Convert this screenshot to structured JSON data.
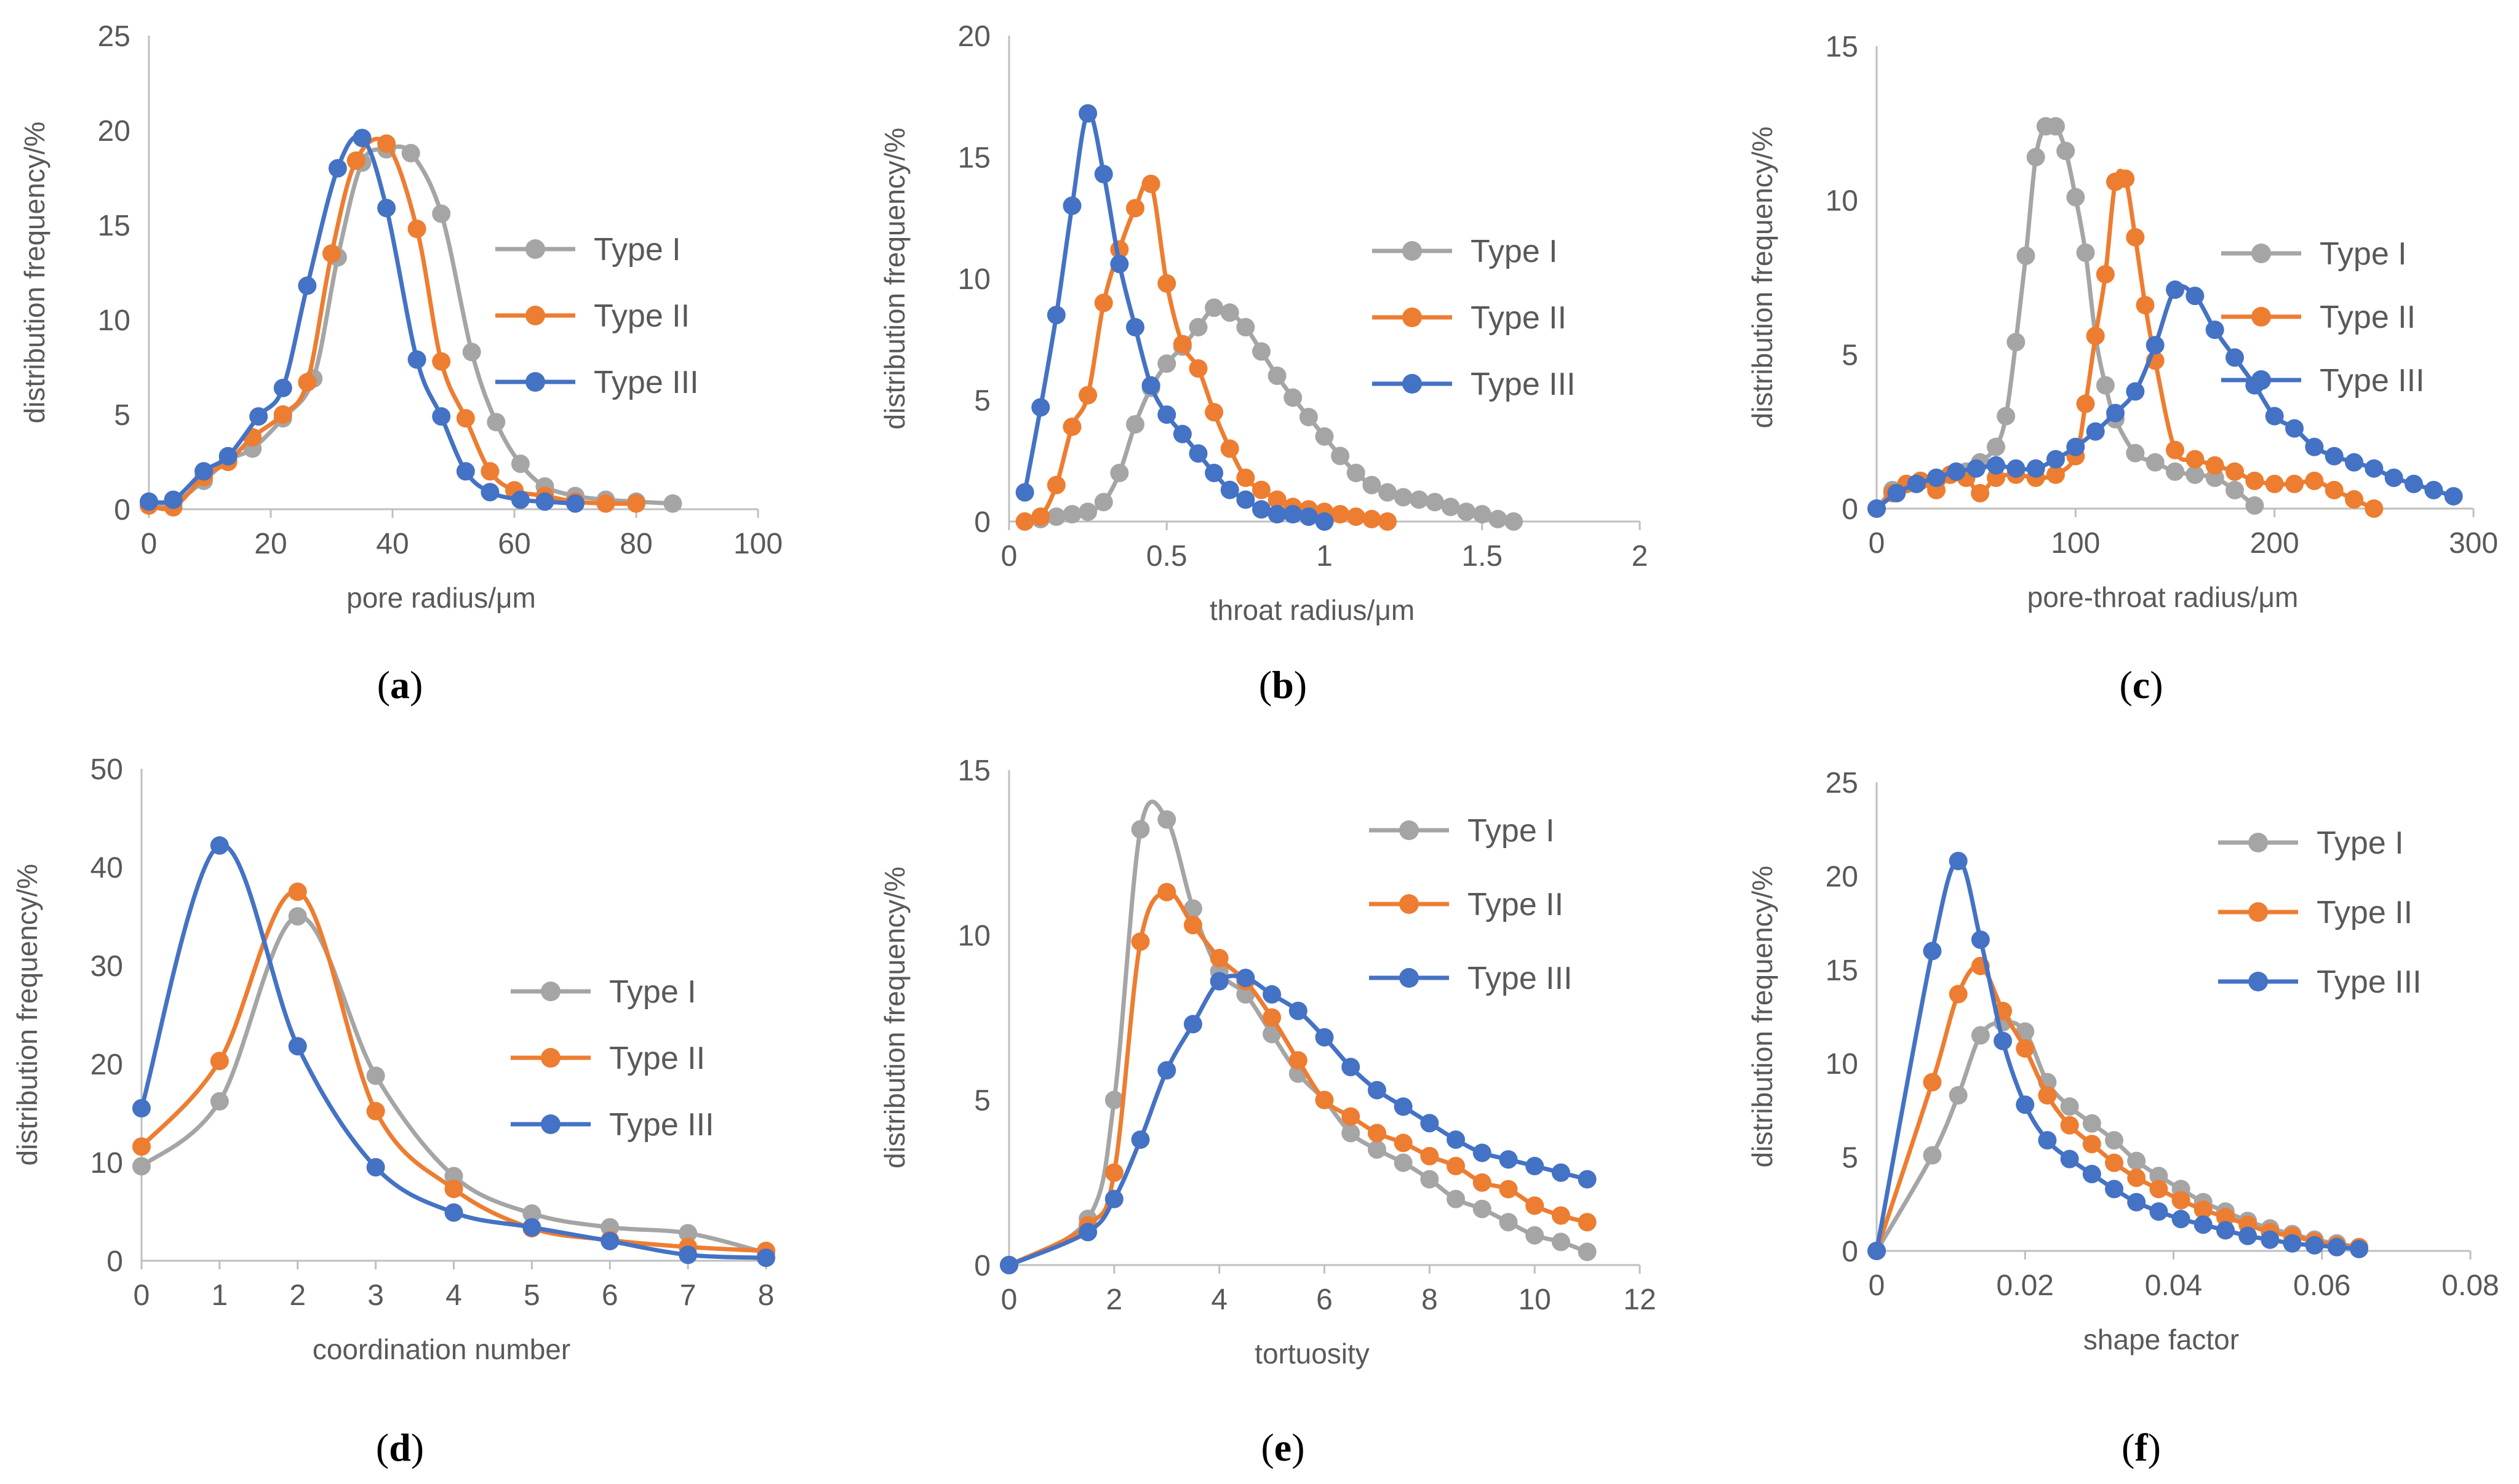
{
  "colors": {
    "Type I": "#a5a5a5",
    "Type II": "#ed7d31",
    "Type III": "#4472c4",
    "axis": "#bfbfbf",
    "text": "#595959"
  },
  "chart_data": [
    {
      "type": "line",
      "panel_label": "a",
      "xlabel": "pore radius/μm",
      "ylabel": "distribution frequency/%",
      "xlim": [
        0,
        100
      ],
      "ylim": [
        0,
        25
      ],
      "xticks": [
        "0",
        "20",
        "40",
        "60",
        "80",
        "100"
      ],
      "yticks": [
        "0",
        "5",
        "10",
        "15",
        "20",
        "25"
      ],
      "series": [
        {
          "name": "Type I",
          "x": [
            0,
            4,
            9,
            13,
            17,
            22,
            27,
            31,
            35,
            39,
            43,
            48,
            53,
            57,
            61,
            65,
            70,
            75,
            80,
            86
          ],
          "y": [
            0.2,
            0.3,
            1.5,
            2.6,
            3.2,
            4.8,
            6.9,
            13.3,
            18.3,
            19.0,
            18.8,
            15.6,
            8.3,
            4.6,
            2.4,
            1.2,
            0.7,
            0.5,
            0.4,
            0.3
          ]
        },
        {
          "name": "Type II",
          "x": [
            0,
            4,
            9,
            13,
            17,
            22,
            26,
            30,
            34,
            39,
            44,
            48,
            52,
            56,
            60,
            65,
            70,
            75,
            80
          ],
          "y": [
            0.2,
            0.1,
            1.7,
            2.5,
            3.8,
            5.0,
            6.7,
            13.5,
            18.4,
            19.3,
            14.8,
            7.8,
            4.8,
            2.0,
            1.0,
            0.7,
            0.4,
            0.3,
            0.3
          ]
        },
        {
          "name": "Type III",
          "x": [
            0,
            4,
            9,
            13,
            18,
            22,
            26,
            31,
            35,
            39,
            44,
            48,
            52,
            56,
            61,
            65,
            70
          ],
          "y": [
            0.4,
            0.5,
            2.0,
            2.8,
            4.9,
            6.4,
            11.8,
            18.0,
            19.6,
            15.9,
            7.9,
            4.9,
            2.0,
            0.9,
            0.5,
            0.4,
            0.3
          ]
        }
      ]
    },
    {
      "type": "line",
      "panel_label": "b",
      "xlabel": "throat radius/μm",
      "ylabel": "distribution frequency/%",
      "xlim": [
        0,
        2
      ],
      "ylim": [
        0,
        20
      ],
      "xticks": [
        "0",
        "0.5",
        "1",
        "1.5",
        "2"
      ],
      "yticks": [
        "0",
        "5",
        "10",
        "15",
        "20"
      ],
      "series": [
        {
          "name": "Type I",
          "x": [
            0.1,
            0.15,
            0.2,
            0.25,
            0.3,
            0.35,
            0.4,
            0.45,
            0.5,
            0.55,
            0.6,
            0.65,
            0.7,
            0.75,
            0.8,
            0.85,
            0.9,
            0.95,
            1.0,
            1.05,
            1.1,
            1.15,
            1.2,
            1.25,
            1.3,
            1.35,
            1.4,
            1.45,
            1.5,
            1.55,
            1.6
          ],
          "y": [
            0.1,
            0.2,
            0.3,
            0.4,
            0.8,
            2.0,
            4.0,
            5.5,
            6.5,
            7.2,
            8.0,
            8.8,
            8.6,
            8.0,
            7.0,
            6.0,
            5.1,
            4.3,
            3.5,
            2.7,
            2.0,
            1.5,
            1.2,
            1.0,
            0.9,
            0.8,
            0.6,
            0.4,
            0.3,
            0.1,
            0.0
          ]
        },
        {
          "name": "Type II",
          "x": [
            0.05,
            0.1,
            0.15,
            0.2,
            0.25,
            0.3,
            0.35,
            0.4,
            0.45,
            0.5,
            0.55,
            0.6,
            0.65,
            0.7,
            0.75,
            0.8,
            0.85,
            0.9,
            0.95,
            1.0,
            1.05,
            1.1,
            1.15,
            1.2
          ],
          "y": [
            0.0,
            0.2,
            1.5,
            3.9,
            5.2,
            9.0,
            11.2,
            12.9,
            13.9,
            9.8,
            7.3,
            6.3,
            4.5,
            3.0,
            1.8,
            1.3,
            0.9,
            0.6,
            0.5,
            0.4,
            0.3,
            0.2,
            0.1,
            0.0
          ]
        },
        {
          "name": "Type III",
          "x": [
            0.05,
            0.1,
            0.15,
            0.2,
            0.25,
            0.3,
            0.35,
            0.4,
            0.45,
            0.5,
            0.55,
            0.6,
            0.65,
            0.7,
            0.75,
            0.8,
            0.85,
            0.9,
            0.95,
            1.0
          ],
          "y": [
            1.2,
            4.7,
            8.5,
            13.0,
            16.8,
            14.3,
            10.6,
            8.0,
            5.6,
            4.4,
            3.6,
            2.8,
            2.0,
            1.3,
            0.9,
            0.5,
            0.3,
            0.3,
            0.2,
            0.0
          ]
        }
      ]
    },
    {
      "type": "line",
      "panel_label": "c",
      "xlabel": "pore-throat radius/μm",
      "ylabel": "distribution frequency/%",
      "xlim": [
        0,
        300
      ],
      "ylim": [
        0,
        15
      ],
      "xticks": [
        "0",
        "100",
        "200",
        "300"
      ],
      "yticks": [
        "0",
        "5",
        "10",
        "15"
      ],
      "series": [
        {
          "name": "Type I",
          "x": [
            0,
            8,
            15,
            22,
            30,
            37,
            45,
            52,
            60,
            65,
            70,
            75,
            80,
            85,
            90,
            95,
            100,
            105,
            110,
            115,
            120,
            130,
            140,
            150,
            160,
            170,
            180,
            190
          ],
          "y": [
            0.0,
            0.6,
            0.8,
            0.9,
            1.0,
            1.1,
            1.2,
            1.5,
            2.0,
            3.0,
            5.4,
            8.2,
            11.4,
            12.4,
            12.4,
            11.6,
            10.1,
            8.3,
            5.6,
            4.0,
            2.9,
            1.8,
            1.5,
            1.2,
            1.1,
            1.0,
            0.6,
            0.1
          ]
        },
        {
          "name": "Type II",
          "x": [
            0,
            8,
            15,
            22,
            30,
            37,
            45,
            52,
            60,
            70,
            80,
            90,
            100,
            105,
            110,
            115,
            120,
            125,
            130,
            135,
            140,
            150,
            160,
            170,
            180,
            190,
            200,
            210,
            220,
            230,
            240,
            250
          ],
          "y": [
            0.0,
            0.5,
            0.8,
            0.9,
            0.6,
            1.1,
            1.0,
            0.5,
            1.0,
            1.1,
            1.0,
            1.1,
            1.7,
            3.4,
            5.6,
            7.6,
            10.6,
            10.7,
            8.8,
            6.6,
            4.8,
            1.9,
            1.6,
            1.4,
            1.2,
            0.9,
            0.8,
            0.8,
            0.9,
            0.6,
            0.3,
            0.0
          ]
        },
        {
          "name": "Type III",
          "x": [
            0,
            10,
            20,
            30,
            40,
            50,
            60,
            70,
            80,
            90,
            100,
            110,
            120,
            130,
            140,
            150,
            160,
            170,
            180,
            190,
            200,
            210,
            220,
            230,
            240,
            250,
            260,
            270,
            280,
            290
          ],
          "y": [
            0.0,
            0.5,
            0.8,
            1.0,
            1.2,
            1.3,
            1.4,
            1.3,
            1.3,
            1.6,
            2.0,
            2.5,
            3.1,
            3.8,
            5.3,
            7.1,
            6.9,
            5.8,
            4.9,
            4.0,
            3.0,
            2.6,
            2.0,
            1.7,
            1.5,
            1.3,
            1.0,
            0.8,
            0.6,
            0.4
          ]
        }
      ]
    },
    {
      "type": "line",
      "panel_label": "d",
      "xlabel": "coordination number",
      "ylabel": "distribution frequency/%",
      "xlim": [
        0,
        8
      ],
      "ylim": [
        0,
        50
      ],
      "xticks": [
        "0",
        "1",
        "2",
        "3",
        "4",
        "5",
        "6",
        "7",
        "8"
      ],
      "yticks": [
        "0",
        "10",
        "20",
        "30",
        "40",
        "50"
      ],
      "series": [
        {
          "name": "Type I",
          "x": [
            0,
            1,
            2,
            3,
            4,
            5,
            6,
            7,
            8
          ],
          "y": [
            9.6,
            16.2,
            35.0,
            18.8,
            8.6,
            4.8,
            3.4,
            2.8,
            0.8
          ]
        },
        {
          "name": "Type II",
          "x": [
            0,
            1,
            2,
            3,
            4,
            5,
            6,
            7,
            8
          ],
          "y": [
            11.6,
            20.3,
            37.5,
            15.2,
            7.3,
            3.3,
            2.1,
            1.4,
            1.0
          ]
        },
        {
          "name": "Type III",
          "x": [
            0,
            1,
            2,
            3,
            4,
            5,
            6,
            7,
            8
          ],
          "y": [
            15.5,
            42.2,
            21.8,
            9.5,
            4.9,
            3.4,
            2.0,
            0.6,
            0.3
          ]
        }
      ]
    },
    {
      "type": "line",
      "panel_label": "e",
      "xlabel": "tortuosity",
      "ylabel": "distribution frequency/%",
      "xlim": [
        0,
        12
      ],
      "ylim": [
        0,
        15
      ],
      "xticks": [
        "0",
        "2",
        "4",
        "6",
        "8",
        "10",
        "12"
      ],
      "yticks": [
        "0",
        "5",
        "10",
        "15"
      ],
      "series": [
        {
          "name": "Type I",
          "x": [
            0,
            1.5,
            2,
            2.5,
            3,
            3.5,
            4,
            4.5,
            5,
            5.5,
            6,
            6.5,
            7,
            7.5,
            8,
            8.5,
            9,
            9.5,
            10,
            10.5,
            11
          ],
          "y": [
            0.0,
            1.4,
            5.0,
            13.2,
            13.5,
            10.8,
            8.9,
            8.2,
            7.0,
            5.8,
            5.0,
            4.0,
            3.5,
            3.1,
            2.6,
            2.0,
            1.7,
            1.3,
            0.9,
            0.7,
            0.4
          ]
        },
        {
          "name": "Type II",
          "x": [
            0,
            1.5,
            2,
            2.5,
            3,
            3.5,
            4,
            4.5,
            5,
            5.5,
            6,
            6.5,
            7,
            7.5,
            8,
            8.5,
            9,
            9.5,
            10,
            10.5,
            11
          ],
          "y": [
            0.0,
            1.2,
            2.8,
            9.8,
            11.3,
            10.3,
            9.3,
            8.6,
            7.5,
            6.2,
            5.0,
            4.5,
            4.0,
            3.7,
            3.3,
            3.0,
            2.5,
            2.3,
            1.8,
            1.5,
            1.3
          ]
        },
        {
          "name": "Type III",
          "x": [
            0,
            1.5,
            2,
            2.5,
            3,
            3.5,
            4,
            4.5,
            5,
            5.5,
            6,
            6.5,
            7,
            7.5,
            8,
            8.5,
            9,
            9.5,
            10,
            10.5,
            11
          ],
          "y": [
            0.0,
            1.0,
            2.0,
            3.8,
            5.9,
            7.3,
            8.6,
            8.7,
            8.2,
            7.7,
            6.9,
            6.0,
            5.3,
            4.8,
            4.3,
            3.8,
            3.4,
            3.2,
            3.0,
            2.8,
            2.6
          ]
        }
      ]
    },
    {
      "type": "line",
      "panel_label": "f",
      "xlabel": "shape factor",
      "ylabel": "distribution frequency/%",
      "xlim": [
        0,
        0.08
      ],
      "ylim": [
        0,
        25
      ],
      "xticks": [
        "0",
        "0.02",
        "0.04",
        "0.06",
        "0.08"
      ],
      "yticks": [
        "0",
        "5",
        "10",
        "15",
        "20",
        "25"
      ],
      "series": [
        {
          "name": "Type I",
          "x": [
            0,
            0.0075,
            0.011,
            0.014,
            0.017,
            0.02,
            0.023,
            0.026,
            0.029,
            0.032,
            0.035,
            0.038,
            0.041,
            0.044,
            0.047,
            0.05,
            0.053,
            0.056,
            0.059,
            0.062,
            0.065
          ],
          "y": [
            0.0,
            5.1,
            8.3,
            11.5,
            12.2,
            11.7,
            9.0,
            7.7,
            6.8,
            5.9,
            4.8,
            4.0,
            3.3,
            2.6,
            2.1,
            1.6,
            1.2,
            0.9,
            0.6,
            0.4,
            0.2
          ]
        },
        {
          "name": "Type II",
          "x": [
            0,
            0.0075,
            0.011,
            0.014,
            0.017,
            0.02,
            0.023,
            0.026,
            0.029,
            0.032,
            0.035,
            0.038,
            0.041,
            0.044,
            0.047,
            0.05,
            0.053,
            0.056,
            0.059,
            0.062,
            0.065
          ],
          "y": [
            0.0,
            9.0,
            13.7,
            15.2,
            12.8,
            10.8,
            8.3,
            6.7,
            5.7,
            4.7,
            3.9,
            3.3,
            2.7,
            2.2,
            1.8,
            1.4,
            1.0,
            0.8,
            0.5,
            0.3,
            0.2
          ]
        },
        {
          "name": "Type III",
          "x": [
            0,
            0.0075,
            0.011,
            0.014,
            0.017,
            0.02,
            0.023,
            0.026,
            0.029,
            0.032,
            0.035,
            0.038,
            0.041,
            0.044,
            0.047,
            0.05,
            0.053,
            0.056,
            0.059,
            0.062,
            0.065
          ],
          "y": [
            0.0,
            16.0,
            20.8,
            16.6,
            11.2,
            7.8,
            5.9,
            4.9,
            4.1,
            3.3,
            2.6,
            2.1,
            1.7,
            1.4,
            1.1,
            0.8,
            0.6,
            0.4,
            0.3,
            0.2,
            0.1
          ]
        }
      ]
    }
  ]
}
